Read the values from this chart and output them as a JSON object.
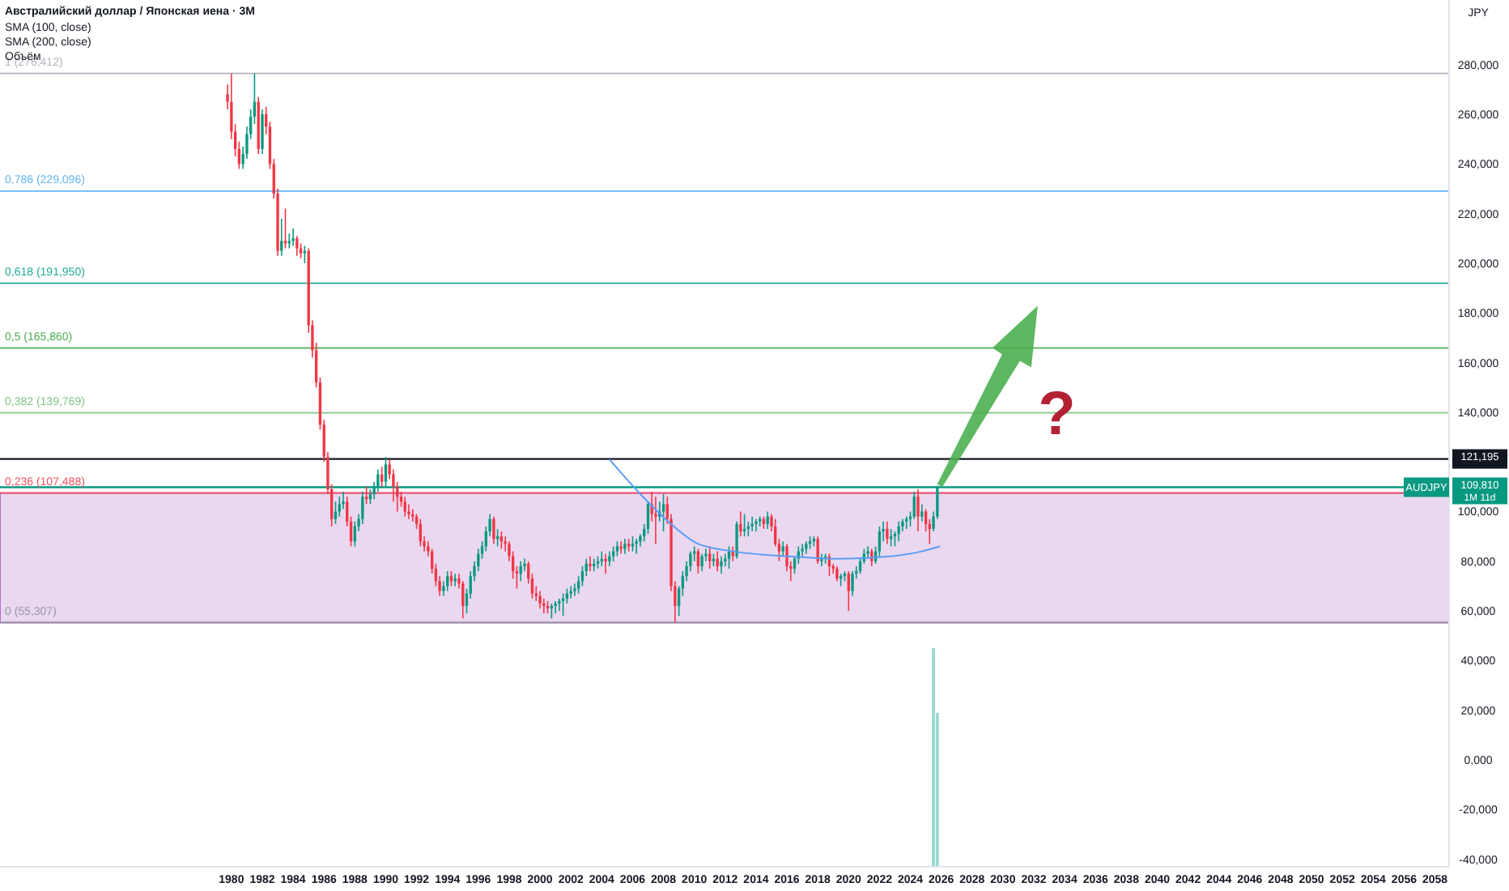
{
  "chart_data": {
    "type": "candlestick",
    "title": "Австралийский доллар / Японская иена · 3M",
    "ylabel": "JPY",
    "annotations": [
      "SMA (100, close)",
      "SMA (200, close)",
      "Объём",
      {
        "text": "?",
        "x": "2033-07",
        "y": 140
      },
      "AUDJPY",
      "1M 11d"
    ],
    "x": [
      "1979-10",
      "1980-01",
      "1980-04",
      "1980-07",
      "1980-10",
      "1981-01",
      "1981-04",
      "1981-07",
      "1981-10",
      "1982-01",
      "1982-04",
      "1982-07",
      "1982-10",
      "1983-01",
      "1983-04",
      "1983-07",
      "1983-10",
      "1984-01",
      "1984-04",
      "1984-07",
      "1984-10",
      "1985-01",
      "1985-04",
      "1985-07",
      "1985-10",
      "1986-01",
      "1986-04",
      "1986-07",
      "1986-10",
      "1987-01",
      "1987-04",
      "1987-07",
      "1987-10",
      "1988-01",
      "1988-04",
      "1988-07",
      "1988-10",
      "1989-01",
      "1989-04",
      "1989-07",
      "1989-10",
      "1990-01",
      "1990-04",
      "1990-07",
      "1990-10",
      "1991-01",
      "1991-04",
      "1991-07",
      "1991-10",
      "1992-01",
      "1992-04",
      "1992-07",
      "1992-10",
      "1993-01",
      "1993-04",
      "1993-07",
      "1993-10",
      "1994-01",
      "1994-04",
      "1994-07",
      "1994-10",
      "1995-01",
      "1995-04",
      "1995-07",
      "1995-10",
      "1996-01",
      "1996-04",
      "1996-07",
      "1996-10",
      "1997-01",
      "1997-04",
      "1997-07",
      "1997-10",
      "1998-01",
      "1998-04",
      "1998-07",
      "1998-10",
      "1999-01",
      "1999-04",
      "1999-07",
      "1999-10",
      "2000-01",
      "2000-04",
      "2000-07",
      "2000-10",
      "2001-01",
      "2001-04",
      "2001-07",
      "2001-10",
      "2002-01",
      "2002-04",
      "2002-07",
      "2002-10",
      "2003-01",
      "2003-04",
      "2003-07",
      "2003-10",
      "2004-01",
      "2004-04",
      "2004-07",
      "2004-10",
      "2005-01",
      "2005-04",
      "2005-07",
      "2005-10",
      "2006-01",
      "2006-04",
      "2006-07",
      "2006-10",
      "2007-01",
      "2007-04",
      "2007-07",
      "2007-10",
      "2008-01",
      "2008-04",
      "2008-07",
      "2008-10",
      "2009-01",
      "2009-04",
      "2009-07",
      "2009-10",
      "2010-01",
      "2010-04",
      "2010-07",
      "2010-10",
      "2011-01",
      "2011-04",
      "2011-07",
      "2011-10",
      "2012-01",
      "2012-04",
      "2012-07",
      "2012-10",
      "2013-01",
      "2013-04",
      "2013-07",
      "2013-10",
      "2014-01",
      "2014-04",
      "2014-07",
      "2014-10",
      "2015-01",
      "2015-04",
      "2015-07",
      "2015-10",
      "2016-01",
      "2016-04",
      "2016-07",
      "2016-10",
      "2017-01",
      "2017-04",
      "2017-07",
      "2017-10",
      "2018-01",
      "2018-04",
      "2018-07",
      "2018-10",
      "2019-01",
      "2019-04",
      "2019-07",
      "2019-10",
      "2020-01",
      "2020-04",
      "2020-07",
      "2020-10",
      "2021-01",
      "2021-04",
      "2021-07",
      "2021-10",
      "2022-01",
      "2022-04",
      "2022-07",
      "2022-10",
      "2023-01",
      "2023-04",
      "2023-07",
      "2023-10",
      "2024-01",
      "2024-04",
      "2024-07",
      "2024-10",
      "2025-01",
      "2025-04",
      "2025-07",
      "2025-10"
    ],
    "ohlc": [
      [
        268,
        272,
        262,
        265
      ],
      [
        265,
        276.4,
        250,
        253
      ],
      [
        253,
        256,
        243,
        246
      ],
      [
        246,
        249,
        238,
        240
      ],
      [
        240,
        247,
        238,
        244
      ],
      [
        244,
        255,
        242,
        252
      ],
      [
        252,
        262,
        250,
        259
      ],
      [
        259,
        276.4,
        256,
        265
      ],
      [
        265,
        267,
        244,
        246
      ],
      [
        246,
        262,
        244,
        260
      ],
      [
        260,
        263,
        252,
        255
      ],
      [
        255,
        257,
        238,
        240
      ],
      [
        240,
        242,
        226,
        228
      ],
      [
        228,
        230,
        203,
        205
      ],
      [
        205,
        218,
        203,
        209
      ],
      [
        209,
        222,
        206,
        208
      ],
      [
        208,
        212,
        206,
        209
      ],
      [
        209,
        214,
        207,
        210
      ],
      [
        210,
        211,
        203,
        206
      ],
      [
        206,
        208,
        202,
        204
      ],
      [
        204,
        207,
        200,
        205
      ],
      [
        205,
        206,
        172,
        175
      ],
      [
        175,
        177,
        162,
        165
      ],
      [
        165,
        168,
        150,
        152
      ],
      [
        152,
        154,
        133,
        135
      ],
      [
        135,
        137,
        120,
        122
      ],
      [
        122,
        124,
        107,
        109
      ],
      [
        109,
        111,
        94,
        97
      ],
      [
        97,
        104,
        95,
        100
      ],
      [
        100,
        106,
        98,
        103
      ],
      [
        103,
        108,
        101,
        104
      ],
      [
        104,
        106,
        94,
        96
      ],
      [
        96,
        98,
        86,
        88
      ],
      [
        88,
        96,
        86,
        94
      ],
      [
        94,
        99,
        92,
        97
      ],
      [
        97,
        108,
        95,
        106
      ],
      [
        106,
        110,
        103,
        105
      ],
      [
        105,
        109,
        103,
        107
      ],
      [
        107,
        112,
        105,
        110
      ],
      [
        110,
        117,
        108,
        115
      ],
      [
        115,
        118,
        110,
        112
      ],
      [
        112,
        122,
        110,
        119
      ],
      [
        119,
        121,
        113,
        115
      ],
      [
        115,
        117,
        104,
        110
      ],
      [
        110,
        112,
        100,
        106
      ],
      [
        106,
        108,
        102,
        104
      ],
      [
        104,
        106,
        98,
        100
      ],
      [
        100,
        103,
        97,
        99
      ],
      [
        99,
        101,
        96,
        98
      ],
      [
        98,
        99,
        93,
        95
      ],
      [
        95,
        97,
        86,
        88
      ],
      [
        88,
        90,
        84,
        86
      ],
      [
        86,
        88,
        82,
        84
      ],
      [
        84,
        85,
        75,
        77
      ],
      [
        77,
        79,
        70,
        72
      ],
      [
        72,
        74,
        66,
        68
      ],
      [
        68,
        72,
        66,
        70
      ],
      [
        70,
        76,
        68,
        74
      ],
      [
        74,
        76,
        70,
        72
      ],
      [
        72,
        75,
        70,
        73
      ],
      [
        73,
        75,
        69,
        71
      ],
      [
        71,
        72,
        57,
        62
      ],
      [
        62,
        69,
        59,
        67
      ],
      [
        67,
        76,
        65,
        74
      ],
      [
        74,
        80,
        72,
        78
      ],
      [
        78,
        85,
        76,
        83
      ],
      [
        83,
        88,
        81,
        86
      ],
      [
        86,
        94,
        84,
        92
      ],
      [
        92,
        99,
        90,
        97
      ],
      [
        97,
        98,
        87,
        89
      ],
      [
        89,
        93,
        86,
        90
      ],
      [
        90,
        92,
        85,
        88
      ],
      [
        88,
        90,
        84,
        87
      ],
      [
        87,
        88,
        80,
        82
      ],
      [
        82,
        84,
        73,
        76
      ],
      [
        76,
        78,
        69,
        75
      ],
      [
        75,
        80,
        72,
        78
      ],
      [
        78,
        81,
        76,
        79
      ],
      [
        79,
        80,
        71,
        73
      ],
      [
        73,
        75,
        65,
        67
      ],
      [
        67,
        70,
        64,
        66
      ],
      [
        66,
        68,
        61,
        63
      ],
      [
        63,
        65,
        59,
        62
      ],
      [
        62,
        64,
        59,
        61
      ],
      [
        61,
        63,
        57,
        62
      ],
      [
        62,
        64,
        59,
        63
      ],
      [
        63,
        65,
        60,
        64
      ],
      [
        64,
        67,
        58,
        65
      ],
      [
        65,
        69,
        63,
        67
      ],
      [
        67,
        70,
        65,
        68
      ],
      [
        68,
        71,
        66,
        69
      ],
      [
        69,
        74,
        67,
        72
      ],
      [
        72,
        78,
        70,
        76
      ],
      [
        76,
        81,
        74,
        79
      ],
      [
        79,
        82,
        76,
        78
      ],
      [
        78,
        81,
        76,
        79
      ],
      [
        79,
        82,
        77,
        80
      ],
      [
        80,
        84,
        78,
        81
      ],
      [
        81,
        83,
        75,
        80
      ],
      [
        80,
        84,
        78,
        82
      ],
      [
        82,
        86,
        80,
        84
      ],
      [
        84,
        88,
        82,
        86
      ],
      [
        86,
        88,
        83,
        85
      ],
      [
        85,
        89,
        83,
        87
      ],
      [
        87,
        89,
        84,
        86
      ],
      [
        86,
        90,
        84,
        87
      ],
      [
        87,
        89,
        83,
        88
      ],
      [
        88,
        91,
        86,
        90
      ],
      [
        90,
        95,
        88,
        93
      ],
      [
        93,
        104,
        91,
        103
      ],
      [
        103,
        108,
        96,
        99
      ],
      [
        99,
        106,
        87,
        98
      ],
      [
        98,
        104,
        96,
        100
      ],
      [
        100,
        107,
        92,
        103
      ],
      [
        103,
        106,
        95,
        97
      ],
      [
        97,
        99,
        68,
        70
      ],
      [
        70,
        72,
        55.3,
        62
      ],
      [
        62,
        70,
        58,
        69
      ],
      [
        69,
        76,
        66,
        74
      ],
      [
        74,
        80,
        72,
        78
      ],
      [
        78,
        84,
        76,
        83
      ],
      [
        83,
        86,
        80,
        84
      ],
      [
        84,
        85,
        75,
        78
      ],
      [
        78,
        83,
        76,
        82
      ],
      [
        82,
        85,
        80,
        83
      ],
      [
        83,
        86,
        77,
        80
      ],
      [
        80,
        83,
        78,
        81
      ],
      [
        81,
        84,
        76,
        78
      ],
      [
        78,
        82,
        75,
        80
      ],
      [
        80,
        83,
        78,
        81
      ],
      [
        81,
        86,
        77,
        84
      ],
      [
        84,
        86,
        80,
        82
      ],
      [
        82,
        96,
        81,
        95
      ],
      [
        95,
        100,
        90,
        92
      ],
      [
        92,
        99,
        90,
        93
      ],
      [
        93,
        96,
        90,
        94
      ],
      [
        94,
        98,
        92,
        95
      ],
      [
        95,
        97,
        92,
        96
      ],
      [
        96,
        98,
        94,
        97
      ],
      [
        97,
        98,
        93,
        95
      ],
      [
        95,
        100,
        93,
        98
      ],
      [
        98,
        99,
        92,
        94
      ],
      [
        94,
        97,
        86,
        87
      ],
      [
        87,
        89,
        80,
        84
      ],
      [
        84,
        88,
        82,
        86
      ],
      [
        86,
        87,
        76,
        78
      ],
      [
        78,
        80,
        72,
        77
      ],
      [
        77,
        82,
        75,
        81
      ],
      [
        81,
        86,
        79,
        84
      ],
      [
        84,
        87,
        82,
        85
      ],
      [
        85,
        88,
        83,
        87
      ],
      [
        87,
        90,
        85,
        88
      ],
      [
        88,
        90,
        86,
        89
      ],
      [
        89,
        90,
        79,
        80
      ],
      [
        80,
        83,
        78,
        81
      ],
      [
        81,
        83,
        79,
        82
      ],
      [
        82,
        83,
        74,
        78
      ],
      [
        78,
        79,
        75,
        77
      ],
      [
        77,
        78,
        72,
        73
      ],
      [
        73,
        75,
        70,
        74
      ],
      [
        74,
        76,
        72,
        75
      ],
      [
        75,
        76,
        60,
        68
      ],
      [
        68,
        76,
        66,
        75
      ],
      [
        75,
        78,
        73,
        76
      ],
      [
        76,
        81,
        75,
        80
      ],
      [
        80,
        85,
        79,
        83
      ],
      [
        83,
        86,
        81,
        84
      ],
      [
        84,
        85,
        78,
        80
      ],
      [
        80,
        86,
        79,
        84
      ],
      [
        84,
        94,
        82,
        92
      ],
      [
        92,
        96,
        88,
        93
      ],
      [
        93,
        96,
        87,
        89
      ],
      [
        89,
        93,
        86,
        90
      ],
      [
        90,
        92,
        86,
        91
      ],
      [
        91,
        96,
        88,
        94
      ],
      [
        94,
        97,
        92,
        96
      ],
      [
        96,
        98,
        93,
        97
      ],
      [
        97,
        100,
        94,
        98
      ],
      [
        98,
        108,
        97,
        106
      ],
      [
        106,
        109,
        92,
        98
      ],
      [
        98,
        103,
        96,
        100
      ],
      [
        100,
        101,
        92,
        95
      ],
      [
        95,
        97,
        87,
        93
      ],
      [
        93,
        100,
        92,
        98
      ],
      [
        98,
        110.5,
        97,
        109.81
      ]
    ],
    "colors": [
      "#f23645",
      "#f23645",
      "#f23645",
      "#f23645",
      "#089981",
      "#089981",
      "#089981",
      "#089981",
      "#f23645",
      "#089981",
      "#f23645",
      "#f23645",
      "#f23645",
      "#f23645",
      "#089981",
      "#f23645",
      "#089981",
      "#089981",
      "#f23645",
      "#f23645",
      "#089981",
      "#f23645",
      "#f23645",
      "#f23645",
      "#f23645",
      "#f23645",
      "#f23645",
      "#f23645",
      "#089981",
      "#089981",
      "#089981",
      "#f23645",
      "#f23645",
      "#089981",
      "#089981",
      "#089981",
      "#f23645",
      "#089981",
      "#089981",
      "#089981",
      "#f23645",
      "#089981",
      "#f23645",
      "#f23645",
      "#f23645",
      "#f23645",
      "#f23645",
      "#f23645",
      "#f23645",
      "#f23645",
      "#f23645",
      "#f23645",
      "#f23645",
      "#f23645",
      "#f23645",
      "#f23645",
      "#089981",
      "#089981",
      "#f23645",
      "#089981",
      "#f23645",
      "#f23645",
      "#089981",
      "#089981",
      "#089981",
      "#089981",
      "#089981",
      "#089981",
      "#089981",
      "#f23645",
      "#089981",
      "#f23645",
      "#f23645",
      "#f23645",
      "#f23645",
      "#f23645",
      "#089981",
      "#089981",
      "#f23645",
      "#f23645",
      "#f23645",
      "#f23645",
      "#f23645",
      "#f23645",
      "#089981",
      "#089981",
      "#089981",
      "#089981",
      "#089981",
      "#089981",
      "#089981",
      "#089981",
      "#089981",
      "#089981",
      "#f23645",
      "#089981",
      "#089981",
      "#089981",
      "#f23645",
      "#089981",
      "#089981",
      "#089981",
      "#f23645",
      "#089981",
      "#f23645",
      "#089981",
      "#089981",
      "#089981",
      "#089981",
      "#089981",
      "#f23645",
      "#f23645",
      "#089981",
      "#089981",
      "#f23645",
      "#f23645",
      "#f23645",
      "#089981",
      "#089981",
      "#089981",
      "#089981",
      "#089981",
      "#f23645",
      "#089981",
      "#089981",
      "#f23645",
      "#089981",
      "#f23645",
      "#089981",
      "#089981",
      "#089981",
      "#f23645",
      "#089981",
      "#f23645",
      "#089981",
      "#089981",
      "#089981",
      "#089981",
      "#089981",
      "#f23645",
      "#089981",
      "#f23645",
      "#f23645",
      "#f23645",
      "#089981",
      "#f23645",
      "#f23645",
      "#089981",
      "#089981",
      "#089981",
      "#089981",
      "#089981",
      "#089981",
      "#f23645",
      "#089981",
      "#089981",
      "#f23645",
      "#f23645",
      "#f23645",
      "#089981",
      "#089981",
      "#f23645",
      "#089981",
      "#089981",
      "#089981",
      "#089981",
      "#089981",
      "#f23645",
      "#089981",
      "#089981",
      "#089981",
      "#f23645",
      "#089981",
      "#089981",
      "#089981",
      "#089981",
      "#089981",
      "#089981",
      "#089981",
      "#f23645",
      "#089981",
      "#f23645",
      "#f23645",
      "#089981",
      "#089981"
    ],
    "series": [
      {
        "type": "line",
        "color": "#5b9cf6",
        "x": [
          "2004-07",
          "2006-09",
          "2008-07",
          "2010-04",
          "2012-07",
          "2016-01",
          "2019-07",
          "2022-10",
          "2024-10",
          "2025-12"
        ],
        "values": [
          121,
          106,
          95,
          87,
          84,
          82,
          81,
          82,
          84,
          86
        ]
      },
      {
        "type": "bar",
        "color": "#9ad9cf",
        "x": [
          "2025-07",
          "2025-10"
        ],
        "base": [
          -43,
          -43
        ],
        "values": [
          88,
          62
        ]
      }
    ],
    "ref_lines": [
      {
        "axis": "y",
        "value": 276.412,
        "label": "1 (276,412)",
        "color": "#b2b5be"
      },
      {
        "axis": "y",
        "value": 229.096,
        "label": "0,786 (229,096)",
        "color": "#64b5f6"
      },
      {
        "axis": "y",
        "value": 191.95,
        "label": "0,618 (191,950)",
        "color": "#22ab94"
      },
      {
        "axis": "y",
        "value": 165.86,
        "label": "0,5 (165,860)",
        "color": "#4caf50"
      },
      {
        "axis": "y",
        "value": 139.769,
        "label": "0,382 (139,769)",
        "color": "#81c784"
      },
      {
        "axis": "y",
        "value": 107.488,
        "label": "0,236 (107,488)",
        "color": "#f7525f"
      },
      {
        "axis": "y",
        "value": 55.307,
        "label": "0 (55,307)",
        "color": "#9598a1"
      },
      {
        "axis": "y",
        "value": 121.195,
        "label": "121,195",
        "color": "#131722",
        "line_style": "solid"
      },
      {
        "axis": "y",
        "value": 109.81,
        "label": "109,810",
        "color": "#089981",
        "line_style": "solid"
      }
    ],
    "bands": [
      {
        "axis": "y",
        "from": 55.307,
        "to": 107.488,
        "color": "#e1c8ea"
      }
    ],
    "xlim": [
      "1965-01",
      "2058-12"
    ],
    "xticks": [
      "1980",
      "1982",
      "1984",
      "1986",
      "1988",
      "1990",
      "1992",
      "1994",
      "1996",
      "1998",
      "2000",
      "2002",
      "2004",
      "2006",
      "2008",
      "2010",
      "2012",
      "2014",
      "2016",
      "2018",
      "2020",
      "2022",
      "2024",
      "2026",
      "2028",
      "2030",
      "2032",
      "2034",
      "2036",
      "2038",
      "2040",
      "2042",
      "2044",
      "2046",
      "2048",
      "2050",
      "2052",
      "2054",
      "2056",
      "2058"
    ],
    "ylim": [
      -43,
      306
    ],
    "yticks": [
      {
        "value": 280,
        "label": "280,000"
      },
      {
        "value": 260,
        "label": "260,000"
      },
      {
        "value": 240,
        "label": "240,000"
      },
      {
        "value": 220,
        "label": "220,000"
      },
      {
        "value": 200,
        "label": "200,000"
      },
      {
        "value": 180,
        "label": "180,000"
      },
      {
        "value": 160,
        "label": "160,000"
      },
      {
        "value": 140,
        "label": "140,000"
      },
      {
        "value": 100,
        "label": "100,000"
      },
      {
        "value": 80,
        "label": "80,000"
      },
      {
        "value": 60,
        "label": "60,000"
      },
      {
        "value": 40,
        "label": "40,000"
      },
      {
        "value": 20,
        "label": "20,000"
      },
      {
        "value": 0,
        "label": "0,000"
      },
      {
        "value": -20,
        "label": "-20,000"
      },
      {
        "value": -40,
        "label": "-40,000"
      }
    ],
    "grid": false
  }
}
